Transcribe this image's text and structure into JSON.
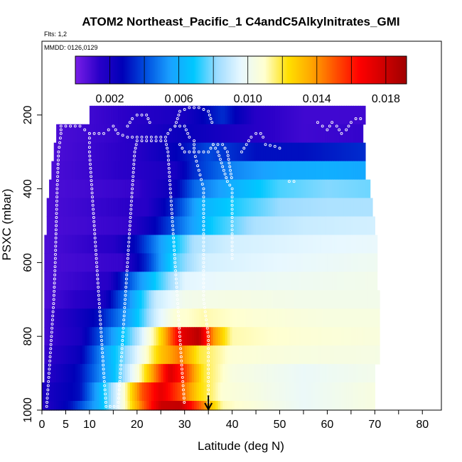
{
  "chart_data": {
    "type": "heatmap",
    "title": "ATOM2 Northeast_Pacific_1 C4andC5Alkylnitrates_GMI",
    "flights_label": "Flts: 1,2",
    "mmdd_label": "MMDD: 0126,0129",
    "xlabel": "Latitude (deg N)",
    "ylabel": "PSXC (mbar)",
    "xlim": [
      0,
      84
    ],
    "ylim": [
      1000,
      0
    ],
    "x_ticks": [
      0,
      5,
      10,
      20,
      30,
      40,
      50,
      60,
      70,
      80
    ],
    "y_ticks": [
      200,
      400,
      600,
      800,
      1000
    ],
    "colorbar": {
      "min": 0.0,
      "max": 0.0192,
      "ticks": [
        0.002,
        0.006,
        0.01,
        0.014,
        0.018
      ],
      "tick_labels": [
        "0.002",
        "0.006",
        "0.010",
        "0.014",
        "0.018"
      ],
      "colors": [
        "#7a1fe8",
        "#2a00c8",
        "#0000b8",
        "#0050e0",
        "#1aa0ff",
        "#00c8ff",
        "#9fdcff",
        "#e8f8ff",
        "#ffffd0",
        "#ffe000",
        "#ffa500",
        "#ff5000",
        "#ff0000",
        "#d00000",
        "#a00000"
      ]
    },
    "pressure_bands": [
      200,
      250,
      300,
      350,
      400,
      450,
      500,
      550,
      600,
      650,
      700,
      750,
      800,
      850,
      900,
      950,
      1000
    ],
    "band_extent_lat": [
      [
        10,
        68
      ],
      [
        3,
        67.5
      ],
      [
        2.5,
        68
      ],
      [
        2,
        68
      ],
      [
        1.5,
        69
      ],
      [
        1,
        69.5
      ],
      [
        1,
        70
      ],
      [
        0.5,
        70.5
      ],
      [
        0.5,
        70.5
      ],
      [
        0.5,
        70.5
      ],
      [
        0.5,
        71
      ],
      [
        0.5,
        71
      ],
      [
        0.5,
        71
      ],
      [
        0.5,
        71
      ],
      [
        0.5,
        70
      ],
      [
        0,
        70
      ],
      [
        0,
        70
      ]
    ],
    "value_profiles": [
      [
        [
          10,
          0.001
        ],
        [
          20,
          0.0015
        ],
        [
          30,
          0.002
        ],
        [
          38,
          0.0035
        ],
        [
          45,
          0.0015
        ],
        [
          55,
          0.001
        ],
        [
          68,
          0.001
        ]
      ],
      [
        [
          3,
          0.0008
        ],
        [
          15,
          0.0012
        ],
        [
          25,
          0.002
        ],
        [
          30,
          0.0025
        ],
        [
          35,
          0.0022
        ],
        [
          45,
          0.0015
        ],
        [
          55,
          0.001
        ],
        [
          67,
          0.0012
        ]
      ],
      [
        [
          3,
          0.0008
        ],
        [
          20,
          0.0015
        ],
        [
          30,
          0.003
        ],
        [
          35,
          0.004
        ],
        [
          45,
          0.003
        ],
        [
          55,
          0.003
        ],
        [
          68,
          0.0035
        ]
      ],
      [
        [
          2,
          0.0008
        ],
        [
          20,
          0.0015
        ],
        [
          28,
          0.002
        ],
        [
          32,
          0.0035
        ],
        [
          40,
          0.005
        ],
        [
          50,
          0.0058
        ],
        [
          60,
          0.006
        ],
        [
          68,
          0.0058
        ]
      ],
      [
        [
          2,
          0.0008
        ],
        [
          20,
          0.0012
        ],
        [
          28,
          0.0025
        ],
        [
          32,
          0.0045
        ],
        [
          40,
          0.006
        ],
        [
          50,
          0.0075
        ],
        [
          60,
          0.008
        ],
        [
          69,
          0.0078
        ]
      ],
      [
        [
          1,
          0.0008
        ],
        [
          22,
          0.0015
        ],
        [
          28,
          0.0035
        ],
        [
          33,
          0.006
        ],
        [
          40,
          0.007
        ],
        [
          50,
          0.0082
        ],
        [
          60,
          0.0085
        ],
        [
          69.5,
          0.0085
        ]
      ],
      [
        [
          1,
          0.0008
        ],
        [
          18,
          0.0012
        ],
        [
          24,
          0.0028
        ],
        [
          30,
          0.005
        ],
        [
          36,
          0.007
        ],
        [
          45,
          0.0085
        ],
        [
          55,
          0.009
        ],
        [
          70,
          0.0092
        ]
      ],
      [
        [
          1,
          0.0008
        ],
        [
          15,
          0.0015
        ],
        [
          20,
          0.003
        ],
        [
          26,
          0.006
        ],
        [
          32,
          0.0085
        ],
        [
          40,
          0.0092
        ],
        [
          55,
          0.0095
        ],
        [
          70.5,
          0.0097
        ]
      ],
      [
        [
          1,
          0.0008
        ],
        [
          17,
          0.0012
        ],
        [
          22,
          0.0035
        ],
        [
          28,
          0.0075
        ],
        [
          34,
          0.0092
        ],
        [
          45,
          0.0095
        ],
        [
          60,
          0.0098
        ],
        [
          70.5,
          0.01
        ]
      ],
      [
        [
          1,
          0.0008
        ],
        [
          14,
          0.0015
        ],
        [
          18,
          0.004
        ],
        [
          24,
          0.007
        ],
        [
          30,
          0.0095
        ],
        [
          40,
          0.0098
        ],
        [
          55,
          0.01
        ],
        [
          70.5,
          0.0102
        ]
      ],
      [
        [
          1,
          0.0008
        ],
        [
          13,
          0.002
        ],
        [
          18,
          0.005
        ],
        [
          24,
          0.009
        ],
        [
          30,
          0.0102
        ],
        [
          40,
          0.0104
        ],
        [
          55,
          0.0102
        ],
        [
          71,
          0.0102
        ]
      ],
      [
        [
          1,
          0.001
        ],
        [
          7,
          0.002
        ],
        [
          12,
          0.003
        ],
        [
          18,
          0.0055
        ],
        [
          24,
          0.0092
        ],
        [
          28,
          0.0108
        ],
        [
          34,
          0.0112
        ],
        [
          45,
          0.0108
        ],
        [
          60,
          0.0105
        ],
        [
          71,
          0.0105
        ]
      ],
      [
        [
          1,
          0.001
        ],
        [
          8,
          0.002
        ],
        [
          14,
          0.005
        ],
        [
          20,
          0.0085
        ],
        [
          25,
          0.0125
        ],
        [
          29,
          0.017
        ],
        [
          33,
          0.0185
        ],
        [
          36,
          0.014
        ],
        [
          40,
          0.0112
        ],
        [
          55,
          0.0108
        ],
        [
          71,
          0.0106
        ]
      ],
      [
        [
          1,
          0.0012
        ],
        [
          8,
          0.0025
        ],
        [
          14,
          0.006
        ],
        [
          20,
          0.0095
        ],
        [
          25,
          0.013
        ],
        [
          29,
          0.0145
        ],
        [
          33,
          0.012
        ],
        [
          40,
          0.0108
        ],
        [
          55,
          0.0105
        ],
        [
          71,
          0.0104
        ]
      ],
      [
        [
          1,
          0.0015
        ],
        [
          8,
          0.003
        ],
        [
          15,
          0.0065
        ],
        [
          20,
          0.0105
        ],
        [
          24,
          0.0145
        ],
        [
          27,
          0.0175
        ],
        [
          30,
          0.0155
        ],
        [
          34,
          0.012
        ],
        [
          40,
          0.0105
        ],
        [
          55,
          0.0098
        ],
        [
          70,
          0.0102
        ]
      ],
      [
        [
          0,
          0.0018
        ],
        [
          8,
          0.003
        ],
        [
          12,
          0.006
        ],
        [
          17,
          0.0105
        ],
        [
          21,
          0.015
        ],
        [
          25,
          0.0172
        ],
        [
          29,
          0.0152
        ],
        [
          33,
          0.0125
        ],
        [
          38,
          0.0108
        ],
        [
          55,
          0.0098
        ],
        [
          70,
          0.0105
        ]
      ],
      [
        [
          0,
          0.0015
        ],
        [
          6,
          0.003
        ],
        [
          12,
          0.006
        ],
        [
          17,
          0.0105
        ],
        [
          21,
          0.0145
        ],
        [
          25,
          0.018
        ],
        [
          29,
          0.0182
        ],
        [
          33,
          0.015
        ],
        [
          38,
          0.0112
        ],
        [
          55,
          0.0098
        ],
        [
          70,
          0.0105
        ]
      ]
    ],
    "flight_tracks": [
      [
        [
          1,
          990
        ],
        [
          1.5,
          900
        ],
        [
          2,
          800
        ],
        [
          2.5,
          700
        ],
        [
          2.8,
          600
        ],
        [
          3,
          500
        ],
        [
          3.2,
          400
        ],
        [
          3.5,
          300
        ],
        [
          4,
          250
        ],
        [
          4,
          230
        ],
        [
          8,
          230
        ],
        [
          9,
          240
        ],
        [
          10,
          250
        ],
        [
          10,
          300
        ],
        [
          10.5,
          400
        ],
        [
          11,
          500
        ],
        [
          11.5,
          600
        ],
        [
          12,
          700
        ],
        [
          12.5,
          800
        ],
        [
          13,
          900
        ],
        [
          13.5,
          990
        ],
        [
          16,
          990
        ],
        [
          16.5,
          900
        ],
        [
          17,
          800
        ],
        [
          17.5,
          700
        ],
        [
          18,
          600
        ],
        [
          18.5,
          500
        ],
        [
          19,
          400
        ],
        [
          19.5,
          300
        ],
        [
          20,
          270
        ],
        [
          22,
          270
        ],
        [
          26,
          270
        ],
        [
          26.5,
          300
        ],
        [
          27,
          400
        ],
        [
          27.5,
          500
        ],
        [
          28,
          600
        ],
        [
          28.5,
          700
        ],
        [
          29,
          800
        ],
        [
          29.5,
          900
        ],
        [
          30,
          990
        ]
      ],
      [
        [
          10,
          250
        ],
        [
          13,
          250
        ],
        [
          14,
          240
        ],
        [
          15,
          230
        ],
        [
          16,
          250
        ],
        [
          18,
          260
        ],
        [
          22,
          260
        ],
        [
          26,
          260
        ],
        [
          27,
          240
        ],
        [
          28,
          230
        ],
        [
          30,
          230
        ],
        [
          31,
          260
        ],
        [
          32,
          270
        ],
        [
          32,
          300
        ],
        [
          33,
          350
        ],
        [
          34,
          400
        ],
        [
          34,
          500
        ],
        [
          34,
          600
        ],
        [
          34,
          700
        ],
        [
          35,
          800
        ],
        [
          35,
          900
        ],
        [
          35,
          990
        ]
      ],
      [
        [
          18,
          230
        ],
        [
          19,
          210
        ],
        [
          20,
          200
        ],
        [
          21,
          200
        ],
        [
          22,
          200
        ],
        [
          23,
          230
        ]
      ],
      [
        [
          29,
          280
        ],
        [
          30,
          300
        ],
        [
          33,
          300
        ],
        [
          35,
          300
        ],
        [
          36,
          280
        ],
        [
          37,
          300
        ],
        [
          38,
          340
        ],
        [
          39,
          380
        ],
        [
          40,
          400
        ],
        [
          40,
          500
        ],
        [
          40,
          600
        ]
      ],
      [
        [
          28,
          230
        ],
        [
          29,
          190
        ],
        [
          31,
          180
        ],
        [
          33,
          180
        ],
        [
          35,
          190
        ],
        [
          36,
          230
        ]
      ],
      [
        [
          36,
          280
        ],
        [
          37,
          280
        ],
        [
          38,
          280
        ],
        [
          39,
          300
        ],
        [
          39.5,
          340
        ],
        [
          40,
          380
        ]
      ],
      [
        [
          42,
          300
        ],
        [
          43,
          280
        ],
        [
          44,
          260
        ],
        [
          45,
          250
        ],
        [
          46,
          250
        ],
        [
          47,
          270
        ]
      ],
      [
        [
          47,
          280
        ],
        [
          49,
          285
        ],
        [
          50,
          290
        ],
        [
          51,
          300
        ]
      ],
      [
        [
          52,
          380
        ],
        [
          53,
          380
        ],
        [
          54,
          380
        ]
      ],
      [
        [
          58,
          220
        ],
        [
          59,
          230
        ],
        [
          60,
          240
        ],
        [
          61,
          220
        ],
        [
          62,
          230
        ],
        [
          63,
          250
        ],
        [
          64,
          240
        ],
        [
          65,
          220
        ],
        [
          66,
          210
        ],
        [
          67,
          210
        ],
        [
          68,
          210
        ]
      ]
    ],
    "flight_marker_lat": 35,
    "grid": false,
    "legend": "top"
  }
}
